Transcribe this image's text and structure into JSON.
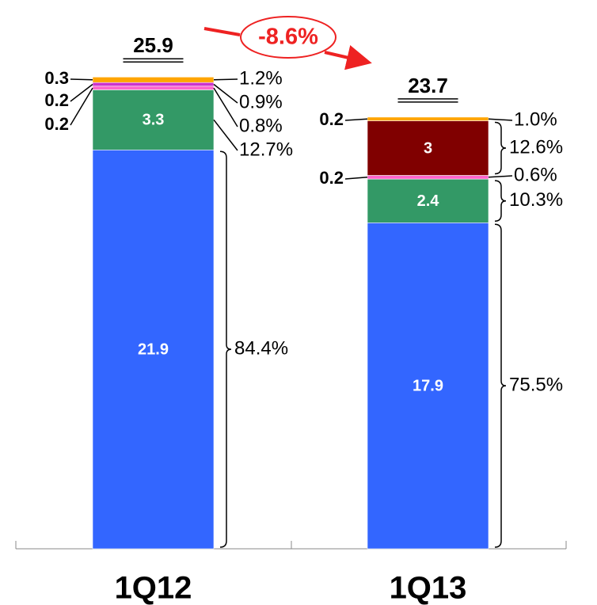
{
  "chart_data": {
    "type": "stacked_bar",
    "categories": [
      "1Q12",
      "1Q13"
    ],
    "totals": [
      25.9,
      23.7
    ],
    "change": {
      "value": -8.6,
      "label": "-8.6%"
    },
    "ylim": [
      0,
      30
    ],
    "series": [
      {
        "color": "#3366ff",
        "values": [
          21.9,
          17.9
        ],
        "shares": [
          84.4,
          75.5
        ],
        "share_labels": [
          "84.4%",
          "75.5%"
        ]
      },
      {
        "color": "#339966",
        "values": [
          3.3,
          2.4
        ],
        "shares": [
          12.7,
          10.3
        ],
        "share_labels": [
          "12.7%",
          "10.3%"
        ]
      },
      {
        "color": "#ff66cc",
        "values": [
          0.2,
          0.2
        ],
        "shares": [
          0.8,
          0.6
        ],
        "share_labels": [
          "0.8%",
          "0.6%"
        ]
      },
      {
        "color": "#cc33cc",
        "values": [
          0.2,
          null
        ],
        "shares": [
          0.9,
          null
        ],
        "share_labels": [
          "0.9%",
          null
        ]
      },
      {
        "color": "#800000",
        "values": [
          null,
          3.0
        ],
        "shares": [
          null,
          12.6
        ],
        "share_labels": [
          null,
          "12.6%"
        ]
      },
      {
        "color": "#ffa500",
        "values": [
          0.3,
          0.2
        ],
        "shares": [
          1.2,
          1.0
        ],
        "share_labels": [
          "1.2%",
          "1.0%"
        ]
      }
    ]
  }
}
